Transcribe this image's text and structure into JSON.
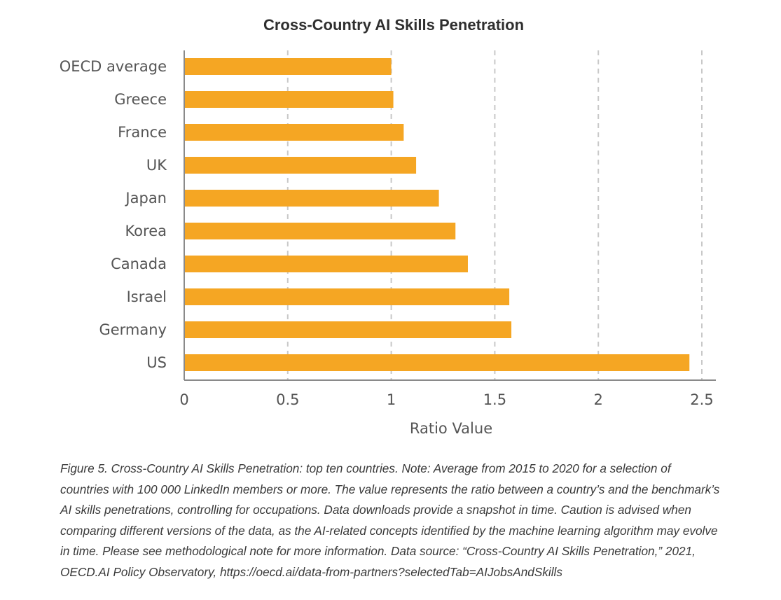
{
  "chart_data": {
    "type": "bar",
    "orientation": "horizontal",
    "title": "Cross-Country AI Skills Penetration",
    "xlabel": "Ratio Value",
    "ylabel": "",
    "categories": [
      "OECD average",
      "Greece",
      "France",
      "UK",
      "Japan",
      "Korea",
      "Canada",
      "Israel",
      "Germany",
      "US"
    ],
    "values": [
      1.0,
      1.01,
      1.06,
      1.12,
      1.23,
      1.31,
      1.37,
      1.57,
      1.58,
      2.44
    ],
    "xlim": [
      0,
      2.5
    ],
    "xticks": [
      0,
      0.5,
      1,
      1.5,
      2,
      2.5
    ],
    "xtick_labels": [
      "0",
      "0.5",
      "1",
      "1.5",
      "2",
      "2.5"
    ],
    "bar_color": "#F5A623",
    "grid": "vertical dashed"
  },
  "caption": "Figure 5. Cross-Country AI Skills Penetration: top ten countries. Note: Average from 2015 to 2020 for a selection of countries with 100 000 LinkedIn members or more. The value represents the ratio between a country’s and the benchmark’s AI skills penetrations, controlling for occupations. Data downloads provide a snapshot in time. Caution is advised when comparing different versions of the data, as the AI-related concepts identified by the machine learning algorithm may evolve in time. Please see methodological note for more information. Data source: “Cross-Country AI Skills Penetration,” 2021, OECD.AI Policy Observatory, https://oecd.ai/data-from-partners?selectedTab=AIJobsAndSkills"
}
